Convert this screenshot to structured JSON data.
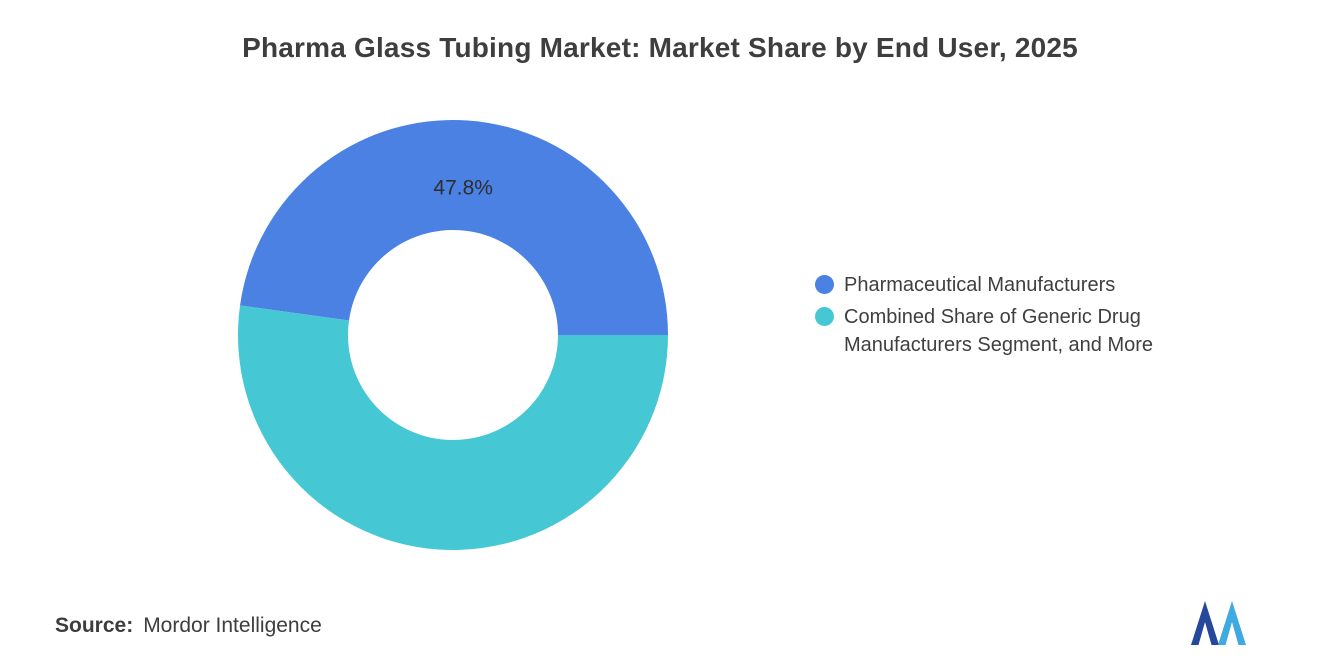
{
  "page": {
    "title": "Pharma Glass Tubing Market: Market Share by End User, 2025",
    "source_label": "Source:",
    "source_value": "Mordor Intelligence"
  },
  "chart_data": {
    "type": "pie",
    "subtype": "donut",
    "title": "Pharma Glass Tubing Market: Market Share by End User, 2025",
    "unit": "%",
    "start_angle_deg": 0,
    "direction": "counterclockwise",
    "inner_radius_ratio": 0.49,
    "legend_position": "right",
    "background": "#ffffff",
    "segments": [
      {
        "label": "Pharmaceutical Manufacturers",
        "value": 47.8,
        "color": "#4A81E3",
        "data_label": "47.8%"
      },
      {
        "label": "Combined Share of Generic Drug Manufacturers Segment, and More",
        "value": 52.2,
        "color": "#45C8D4",
        "data_label": ""
      }
    ]
  },
  "logo": {
    "name": "mordor-intelligence",
    "color_left": "#26489C",
    "color_right": "#3FA9E1"
  }
}
